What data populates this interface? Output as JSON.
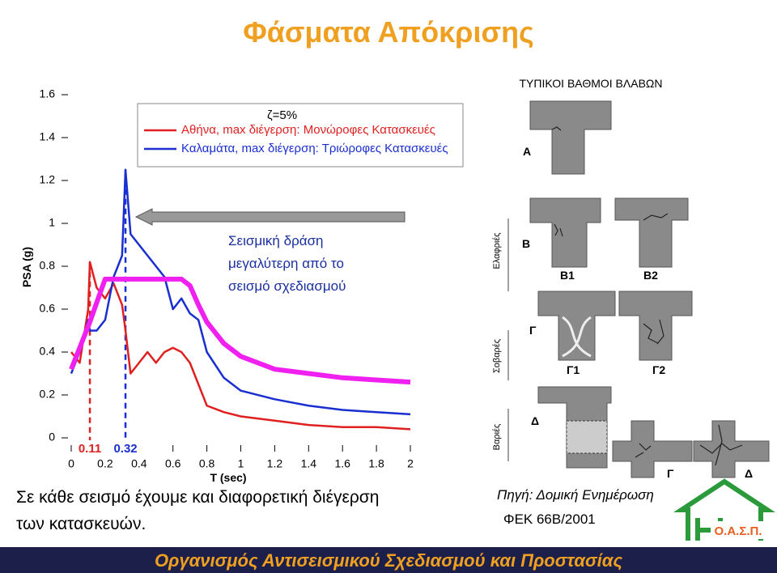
{
  "title": "Φάσματα Απόκρισης",
  "chart_data": {
    "type": "line",
    "x_label": "T (sec)",
    "y_label": "PSA (g)",
    "legend_title": "ζ=5%",
    "x": [
      0,
      0.05,
      0.1,
      0.11,
      0.15,
      0.2,
      0.25,
      0.3,
      0.32,
      0.35,
      0.4,
      0.45,
      0.5,
      0.55,
      0.6,
      0.65,
      0.7,
      0.75,
      0.8,
      0.9,
      1.0,
      1.2,
      1.4,
      1.6,
      1.8,
      2.0
    ],
    "series": [
      {
        "name": "Αθήνα, max διέγερση: Μονώροφες Κατασκευές",
        "color": "#e02020",
        "width": 2.5,
        "values": [
          0.4,
          0.35,
          0.6,
          0.82,
          0.7,
          0.65,
          0.72,
          0.62,
          0.5,
          0.3,
          0.35,
          0.4,
          0.35,
          0.4,
          0.42,
          0.4,
          0.35,
          0.25,
          0.15,
          0.12,
          0.1,
          0.08,
          0.06,
          0.05,
          0.05,
          0.04
        ]
      },
      {
        "name": "Καλαμάτα, max διέγερση: Τριώροφες Κατασκευές",
        "color": "#1a2fd0",
        "width": 2.5,
        "values": [
          0.3,
          0.4,
          0.55,
          0.5,
          0.5,
          0.55,
          0.75,
          0.85,
          1.25,
          0.95,
          0.9,
          0.85,
          0.8,
          0.75,
          0.6,
          0.65,
          0.58,
          0.55,
          0.4,
          0.28,
          0.22,
          0.18,
          0.15,
          0.13,
          0.12,
          0.11
        ]
      },
      {
        "color": "#f020f0",
        "width": 6,
        "values": [
          0.32,
          0.42,
          0.52,
          0.54,
          0.63,
          0.74,
          0.74,
          0.74,
          0.74,
          0.74,
          0.74,
          0.74,
          0.74,
          0.74,
          0.74,
          0.74,
          0.71,
          0.62,
          0.54,
          0.44,
          0.38,
          0.32,
          0.3,
          0.28,
          0.27,
          0.26
        ]
      }
    ],
    "vlines": [
      {
        "value": 0.11,
        "color": "#e02020"
      },
      {
        "value": 0.32,
        "color": "#1a2fd0"
      }
    ],
    "annotation": [
      "Σεισμική δράση",
      "μεγαλύτερη από το",
      "σεισμό σχεδιασμού"
    ],
    "xlim": [
      0,
      2
    ],
    "ylim": [
      0,
      1.6
    ],
    "xticks": [
      0,
      0.2,
      0.4,
      0.6,
      0.8,
      1,
      1.2,
      1.4,
      1.6,
      1.8,
      2
    ],
    "yticks": [
      0,
      0.2,
      0.4,
      0.6,
      0.8,
      1,
      1.2,
      1.4,
      1.6
    ]
  },
  "damage_figure": {
    "title": "ΤΥΠΙΚΟΙ ΒΑΘΜΟΙ ΒΛΑΒΩΝ",
    "levels": [
      "Ελαφριές",
      "Σοβαρές",
      "Βαριές"
    ],
    "grades": [
      "Α",
      "Β",
      "Β1",
      "Β2",
      "Γ",
      "Γ1",
      "Γ2",
      "Δ",
      "Γ",
      "Δ"
    ]
  },
  "caption": [
    "Σε κάθε σεισμό έχουμε και διαφορετική διέγερση",
    "των κατασκευών."
  ],
  "source": [
    "Πηγή: Δομική Ενημέρωση",
    "ΦΕΚ 66Β/2001"
  ],
  "logo": "Ο.Α.Σ.Π.",
  "footer": "Οργανισμός Αντισεισμικού Σχεδιασμού και Προστασίας"
}
